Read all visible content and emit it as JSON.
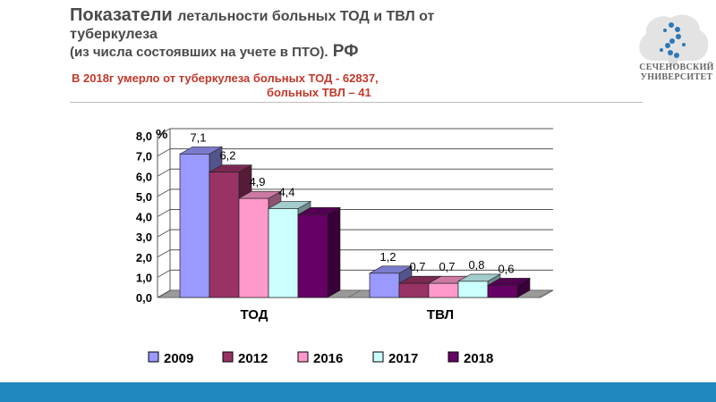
{
  "header": {
    "title_part1": "Показатели",
    "title_part2": "летальности больных  ТОД и ТВЛ от",
    "title_line2": "туберкулеза",
    "title_line3_a": "(из числа состоявших на учете в ПТО).",
    "title_line3_b": " РФ",
    "note_line1": "В 2018г   умерло от туберкулеза больных  ТОД  - 62837,",
    "note_line2": "больных  ТВЛ –      41"
  },
  "logo": {
    "text_line1": "СЕЧЕНОВСКИЙ",
    "text_line2": "УНИВЕРСИТЕТ"
  },
  "chart_data": {
    "type": "bar",
    "unit_label": "%",
    "categories": [
      "ТОД",
      "ТВЛ"
    ],
    "series": [
      {
        "name": "2009",
        "values": [
          7.1,
          1.2
        ],
        "labels": [
          "7,1",
          "1,2"
        ],
        "color": "#9999ff"
      },
      {
        "name": "2012",
        "values": [
          6.2,
          0.7
        ],
        "labels": [
          "6,2",
          "0,7"
        ],
        "color": "#993366"
      },
      {
        "name": "2016",
        "values": [
          4.9,
          0.7
        ],
        "labels": [
          "4,9",
          "0,7"
        ],
        "color": "#ff99cc"
      },
      {
        "name": "2017",
        "values": [
          4.4,
          0.8
        ],
        "labels": [
          "4,4",
          "0,8"
        ],
        "color": "#ccffff"
      },
      {
        "name": "2018",
        "values": [
          4.1,
          0.6
        ],
        "labels": [
          "",
          "0,6"
        ],
        "color": "#660066"
      }
    ],
    "y_ticks": [
      "0,0",
      "1,0",
      "2,0",
      "3,0",
      "4,0",
      "5,0",
      "6,0",
      "7,0",
      "8,0"
    ],
    "ylim": [
      0,
      8
    ],
    "grid": true,
    "legend_position": "bottom"
  },
  "colors": {
    "footer": "#1f86bf",
    "note_text": "#c0392b",
    "logo_blue": "#2b78b8"
  }
}
